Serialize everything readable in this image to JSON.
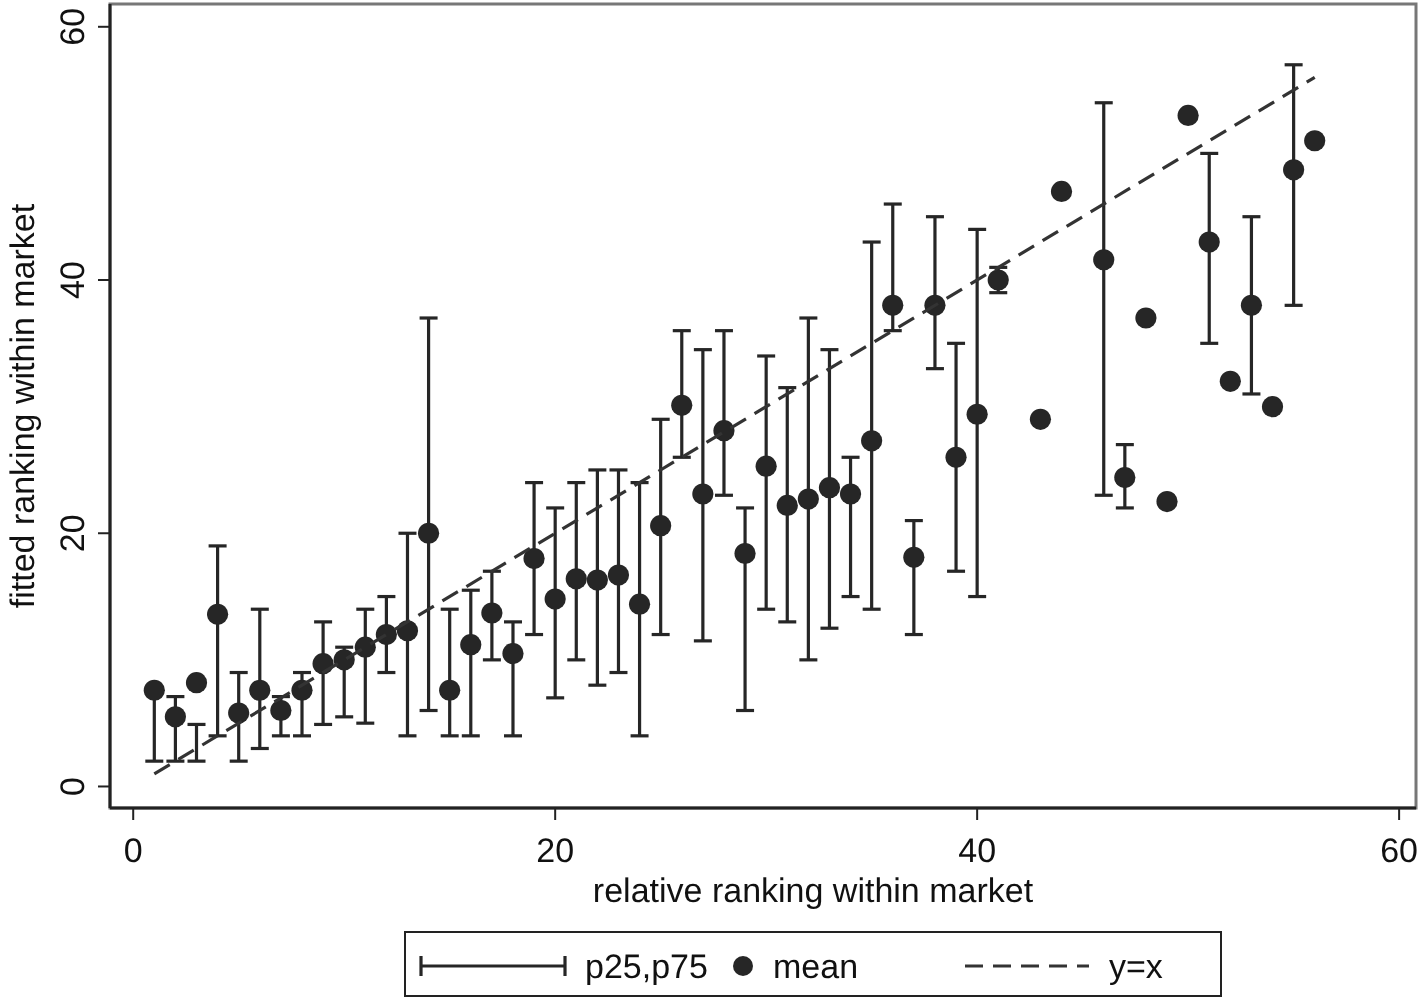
{
  "chart_data": {
    "type": "scatter",
    "xlabel": "relative ranking within market",
    "ylabel": "fitted ranking within market",
    "annotations": [
      "p25,p75"
    ],
    "x": [
      1,
      2,
      3,
      4,
      5,
      6,
      7,
      8,
      9,
      10,
      11,
      12,
      13,
      14,
      15,
      16,
      17,
      18,
      19,
      20,
      21,
      22,
      23,
      24,
      25,
      26,
      27,
      28,
      29,
      30,
      31,
      32,
      33,
      34,
      35,
      36,
      37,
      38,
      39,
      40,
      41,
      43,
      44,
      46,
      47,
      48,
      49,
      50,
      51,
      52,
      53,
      54,
      55,
      56
    ],
    "series": [
      {
        "name": "mean",
        "marker": "circle",
        "color": "#262626",
        "values": [
          7.6,
          5.5,
          8.2,
          13.6,
          5.8,
          7.6,
          6,
          7.6,
          9.7,
          10,
          11,
          12,
          12.3,
          20,
          7.6,
          11.2,
          13.7,
          10.5,
          18,
          14.8,
          16.4,
          16.3,
          16.7,
          14.4,
          20.6,
          30.1,
          23.1,
          28.1,
          18.4,
          25.3,
          22.2,
          22.7,
          23.6,
          23.1,
          27.3,
          38,
          18.1,
          38,
          26,
          29.4,
          40,
          29,
          47,
          41.6,
          24.4,
          37,
          22.5,
          53,
          43,
          32,
          38,
          30,
          48.7,
          51
        ],
        "errors": [
          [
            2,
            7.6
          ],
          [
            2,
            7.1
          ],
          [
            2,
            4.9
          ],
          [
            4,
            19
          ],
          [
            2,
            9
          ],
          [
            3,
            14
          ],
          [
            4,
            7.1
          ],
          [
            4,
            9
          ],
          [
            4.9,
            13
          ],
          [
            5.5,
            11
          ],
          [
            5,
            14
          ],
          [
            9,
            15
          ],
          [
            4,
            20
          ],
          [
            6,
            37
          ],
          [
            4,
            14
          ],
          [
            4,
            15.5
          ],
          [
            10,
            17
          ],
          [
            4,
            13
          ],
          [
            12,
            24
          ],
          [
            7,
            22
          ],
          [
            10,
            24
          ],
          [
            8,
            25
          ],
          [
            9,
            25
          ],
          [
            4,
            24
          ],
          [
            12,
            29
          ],
          [
            26,
            36
          ],
          [
            11.5,
            34.5
          ],
          [
            23,
            36
          ],
          [
            6,
            22
          ],
          [
            14,
            34
          ],
          [
            13,
            31.5
          ],
          [
            10,
            37
          ],
          [
            12.5,
            34.5
          ],
          [
            15,
            26
          ],
          [
            14,
            43
          ],
          [
            36,
            46
          ],
          [
            12,
            21
          ],
          [
            33,
            45
          ],
          [
            17,
            35
          ],
          [
            15,
            44
          ],
          [
            39,
            41
          ],
          null,
          null,
          [
            23,
            54
          ],
          [
            22,
            27
          ],
          null,
          [
            22.2,
            22.8
          ],
          null,
          [
            35,
            50
          ],
          null,
          [
            31,
            45
          ],
          null,
          [
            38,
            57
          ],
          null
        ]
      },
      {
        "name": "y=x",
        "type": "line",
        "line_style": "dashed",
        "marker": "none",
        "color": "#333333",
        "x": [
          1,
          56
        ],
        "values": [
          1,
          56
        ]
      }
    ],
    "xlim": [
      -1.1,
      60.8
    ],
    "ylim": [
      -1.7,
      61.8
    ],
    "xticks": [
      0,
      20,
      40,
      60
    ],
    "yticks": [
      0,
      20,
      40,
      60
    ],
    "grid": false,
    "legend": "bottom"
  }
}
